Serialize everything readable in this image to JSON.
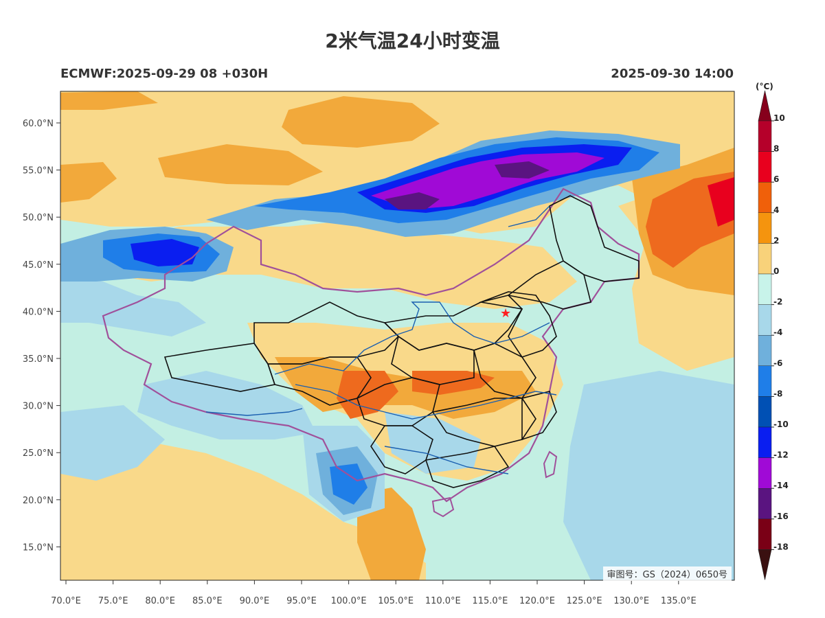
{
  "title": "2米气温24小时变温",
  "subtitle_left": "ECMWF:2025-09-29 08 +030H",
  "subtitle_right": "2025-09-30 14:00",
  "approval": "审图号：GS（2024）0650号",
  "lat_labels": [
    "60.0°N",
    "55.0°N",
    "50.0°N",
    "45.0°N",
    "40.0°N",
    "35.0°N",
    "30.0°N",
    "25.0°N",
    "20.0°N",
    "15.0°N"
  ],
  "lon_labels": [
    "70.0°E",
    "75.0°E",
    "80.0°E",
    "85.0°E",
    "90.0°E",
    "95.0°E",
    "100.0°E",
    "105.0°E",
    "110.0°E",
    "115.0°E",
    "120.0°E",
    "125.0°E",
    "130.0°E",
    "135.0°E"
  ],
  "legend": {
    "unit": "(°C)",
    "ticks": [
      "10",
      "8",
      "6",
      "4",
      "2",
      "0",
      "-2",
      "-4",
      "-6",
      "-8",
      "-10",
      "-12",
      "-14",
      "-16",
      "-18"
    ],
    "colors": [
      "#b5002a",
      "#e8001e",
      "#f0600a",
      "#f5940e",
      "#f8d27a",
      "#c8f3ea",
      "#a8d8ea",
      "#6fb0dc",
      "#1f7ee8",
      "#0050b4",
      "#0a1ef0",
      "#a00ad6",
      "#5a1480",
      "#7a0016"
    ],
    "top_arrow_color": "#86001c",
    "bottom_arrow_color": "#3a1010"
  },
  "colors": {
    "sea_background": "#c3efe3",
    "warm_light": "#f9d98a",
    "warm_mid": "#f2a93b",
    "warm_strong": "#ee6a1e",
    "cold_light": "#9fd4ea",
    "cold_mid": "#2a66dc",
    "cold_strong": "#9414c8",
    "border_national": "#a0509a",
    "border_province": "#111111",
    "river": "#1a5fb0",
    "beijing_marker": "#ff2020"
  }
}
